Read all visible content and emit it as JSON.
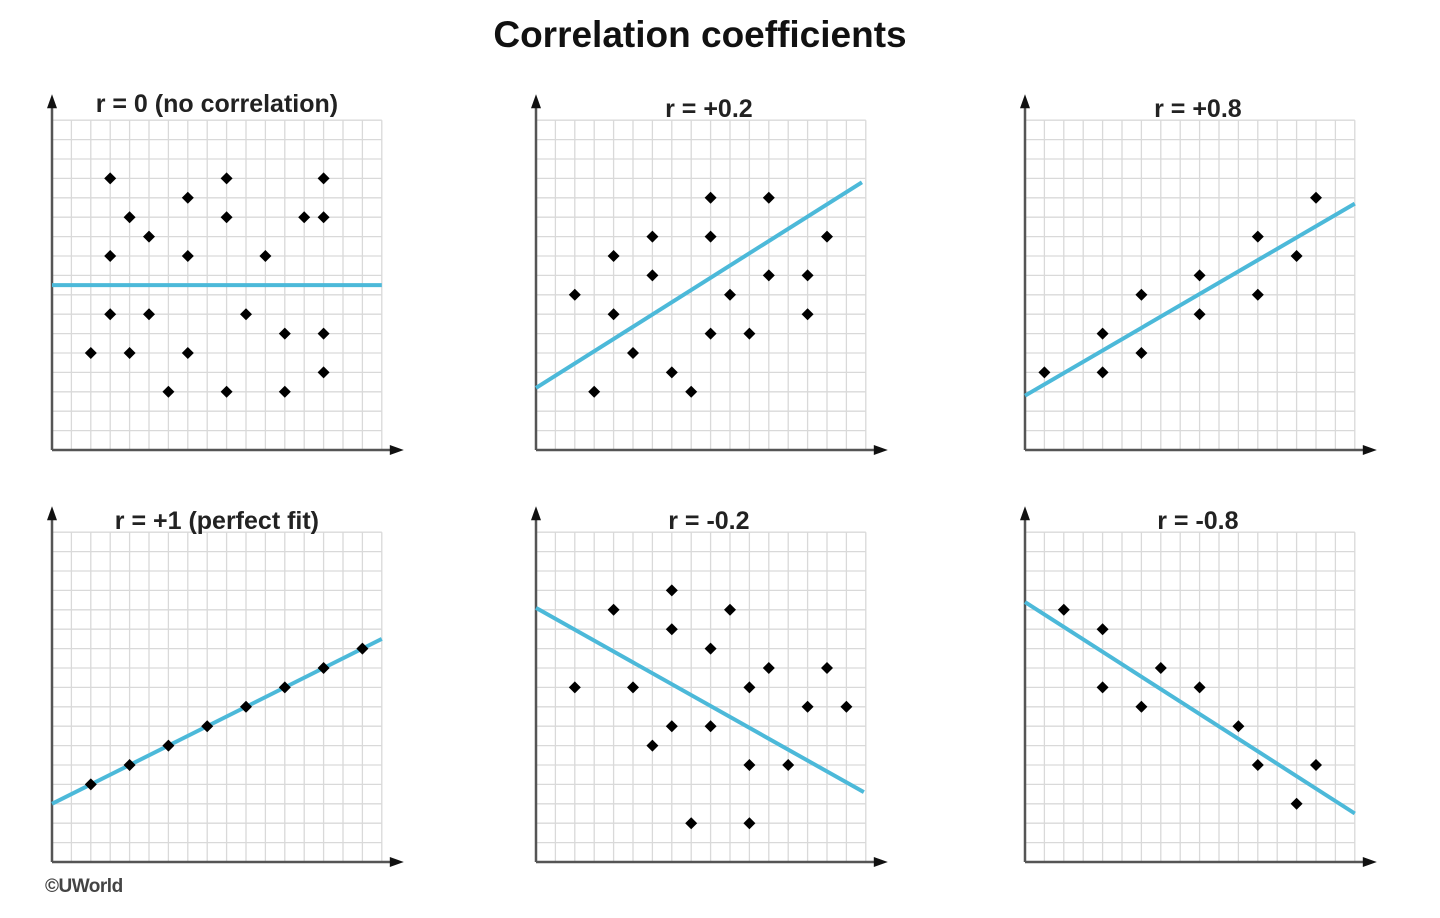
{
  "chart_data": [
    {
      "type": "scatter",
      "title": "r = 0 (no correlation)",
      "xlim": [
        0,
        17
      ],
      "ylim": [
        0,
        17
      ],
      "grid": true,
      "points": [
        [
          3,
          14
        ],
        [
          4,
          12
        ],
        [
          5,
          11
        ],
        [
          3,
          10
        ],
        [
          7,
          13
        ],
        [
          7,
          10
        ],
        [
          9,
          14
        ],
        [
          9,
          12
        ],
        [
          11,
          10
        ],
        [
          13,
          12
        ],
        [
          14,
          14
        ],
        [
          14,
          12
        ],
        [
          3,
          7
        ],
        [
          5,
          7
        ],
        [
          10,
          7
        ],
        [
          12,
          6
        ],
        [
          14,
          6
        ],
        [
          2,
          5
        ],
        [
          4,
          5
        ],
        [
          7,
          5
        ],
        [
          6,
          3
        ],
        [
          9,
          3
        ],
        [
          12,
          3
        ],
        [
          14,
          4
        ]
      ],
      "trendline": [
        [
          0,
          8.5
        ],
        [
          17,
          8.5
        ]
      ]
    },
    {
      "type": "scatter",
      "title": "r = +0.2",
      "xlim": [
        0,
        17
      ],
      "ylim": [
        0,
        17
      ],
      "grid": true,
      "points": [
        [
          2,
          8
        ],
        [
          4,
          10
        ],
        [
          4,
          7
        ],
        [
          5,
          5
        ],
        [
          3,
          3
        ],
        [
          6,
          11
        ],
        [
          6,
          9
        ],
        [
          7,
          4
        ],
        [
          8,
          3
        ],
        [
          9,
          13
        ],
        [
          9,
          11
        ],
        [
          10,
          8
        ],
        [
          9,
          6
        ],
        [
          11,
          6
        ],
        [
          12,
          13
        ],
        [
          12,
          9
        ],
        [
          14,
          9
        ],
        [
          14,
          7
        ],
        [
          15,
          11
        ]
      ],
      "trendline": [
        [
          0,
          3.2
        ],
        [
          16.8,
          13.8
        ]
      ]
    },
    {
      "type": "scatter",
      "title": "r = +0.8",
      "xlim": [
        0,
        17
      ],
      "ylim": [
        0,
        17
      ],
      "grid": true,
      "points": [
        [
          1,
          4
        ],
        [
          4,
          6
        ],
        [
          4,
          4
        ],
        [
          6,
          8
        ],
        [
          6,
          5
        ],
        [
          9,
          9
        ],
        [
          9,
          7
        ],
        [
          12,
          11
        ],
        [
          12,
          8
        ],
        [
          14,
          10
        ],
        [
          15,
          13
        ]
      ],
      "trendline": [
        [
          0,
          2.8
        ],
        [
          17,
          12.7
        ]
      ]
    },
    {
      "type": "scatter",
      "title": "r = +1 (perfect fit)",
      "xlim": [
        0,
        17
      ],
      "ylim": [
        0,
        17
      ],
      "grid": true,
      "points": [
        [
          2,
          4
        ],
        [
          4,
          5
        ],
        [
          6,
          6
        ],
        [
          8,
          7
        ],
        [
          10,
          8
        ],
        [
          12,
          9
        ],
        [
          14,
          10
        ],
        [
          16,
          11
        ]
      ],
      "trendline": [
        [
          0,
          3
        ],
        [
          17,
          11.5
        ]
      ]
    },
    {
      "type": "scatter",
      "title": "r = -0.2",
      "xlim": [
        0,
        17
      ],
      "ylim": [
        0,
        17
      ],
      "grid": true,
      "points": [
        [
          2,
          9
        ],
        [
          4,
          13
        ],
        [
          5,
          9
        ],
        [
          6,
          6
        ],
        [
          7,
          14
        ],
        [
          7,
          12
        ],
        [
          7,
          7
        ],
        [
          8,
          2
        ],
        [
          9,
          11
        ],
        [
          9,
          7
        ],
        [
          10,
          13
        ],
        [
          11,
          9
        ],
        [
          11,
          5
        ],
        [
          11,
          2
        ],
        [
          12,
          10
        ],
        [
          13,
          5
        ],
        [
          14,
          8
        ],
        [
          15,
          10
        ],
        [
          16,
          8
        ]
      ],
      "trendline": [
        [
          0,
          13.1
        ],
        [
          16.9,
          3.6
        ]
      ]
    },
    {
      "type": "scatter",
      "title": "r = -0.8",
      "xlim": [
        0,
        17
      ],
      "ylim": [
        0,
        17
      ],
      "grid": true,
      "points": [
        [
          2,
          13
        ],
        [
          4,
          12
        ],
        [
          4,
          9
        ],
        [
          6,
          8
        ],
        [
          7,
          10
        ],
        [
          9,
          9
        ],
        [
          11,
          7
        ],
        [
          12,
          5
        ],
        [
          14,
          3
        ],
        [
          15,
          5
        ]
      ],
      "trendline": [
        [
          0,
          13.4
        ],
        [
          17,
          2.5
        ]
      ]
    }
  ],
  "header": {
    "title": "Correlation coefficients"
  },
  "footer": {
    "copyright": "©UWorld"
  },
  "colors": {
    "trendline": "#4cb9d9",
    "points": "#000000",
    "grid": "#d9d9d9",
    "axes": "#555555"
  }
}
